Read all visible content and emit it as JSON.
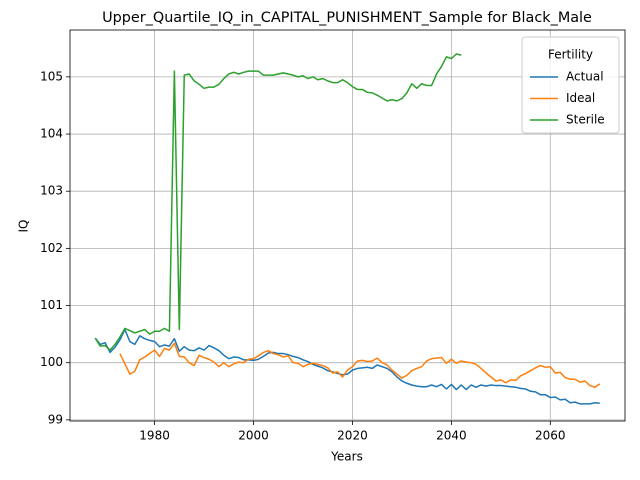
{
  "chart_data": {
    "type": "line",
    "title": "Upper_Quartile_IQ_in_CAPITAL_PUNISHMENT_Sample for Black_Male",
    "xlabel": "Years",
    "ylabel": "IQ",
    "legend_title": "Fertility",
    "legend": "upper right",
    "grid": true,
    "x": [
      1968,
      1969,
      1970,
      1971,
      1972,
      1973,
      1974,
      1975,
      1976,
      1977,
      1978,
      1979,
      1980,
      1981,
      1982,
      1983,
      1984,
      1985,
      1986,
      1987,
      1988,
      1989,
      1990,
      1991,
      1992,
      1993,
      1994,
      1995,
      1996,
      1997,
      1998,
      1999,
      2000,
      2001,
      2002,
      2003,
      2004,
      2005,
      2006,
      2007,
      2008,
      2009,
      2010,
      2011,
      2012,
      2013,
      2014,
      2015,
      2016,
      2017,
      2018,
      2019,
      2020,
      2021,
      2022,
      2023,
      2024,
      2025,
      2026,
      2027,
      2028,
      2029,
      2030,
      2031,
      2032,
      2033,
      2034,
      2035,
      2036,
      2037,
      2038,
      2039,
      2040,
      2041,
      2042,
      2043,
      2044,
      2045,
      2046,
      2047,
      2048,
      2049,
      2050,
      2051,
      2052,
      2053,
      2054,
      2055,
      2056,
      2057,
      2058,
      2059,
      2060,
      2061,
      2062,
      2063,
      2064,
      2065,
      2066,
      2067,
      2068,
      2069,
      2070
    ],
    "series": [
      {
        "name": "Actual",
        "color": "#1f77b4",
        "values": [
          100.43,
          100.32,
          100.35,
          100.18,
          100.27,
          100.4,
          100.58,
          100.37,
          100.32,
          100.47,
          100.42,
          100.39,
          100.37,
          100.28,
          100.31,
          100.29,
          100.42,
          100.2,
          100.28,
          100.22,
          100.21,
          100.26,
          100.22,
          100.3,
          100.26,
          100.21,
          100.13,
          100.07,
          100.1,
          100.09,
          100.05,
          100.05,
          100.04,
          100.06,
          100.11,
          100.17,
          100.18,
          100.16,
          100.16,
          100.14,
          100.11,
          100.09,
          100.05,
          100.02,
          99.97,
          99.94,
          99.91,
          99.86,
          99.84,
          99.81,
          99.79,
          99.8,
          99.87,
          99.9,
          99.91,
          99.92,
          99.9,
          99.96,
          99.93,
          99.9,
          99.84,
          99.75,
          99.68,
          99.64,
          99.61,
          99.59,
          99.58,
          99.58,
          99.61,
          99.58,
          99.62,
          99.54,
          99.62,
          99.53,
          99.61,
          99.53,
          99.61,
          99.57,
          99.61,
          99.59,
          99.61,
          99.6,
          99.6,
          99.59,
          99.58,
          99.57,
          99.55,
          99.54,
          99.5,
          99.49,
          99.44,
          99.44,
          99.39,
          99.4,
          99.35,
          99.36,
          99.3,
          99.31,
          99.28,
          99.28,
          99.28,
          99.3,
          99.29
        ]
      },
      {
        "name": "Ideal",
        "color": "#ff7f0e",
        "values": [
          null,
          null,
          null,
          null,
          null,
          100.16,
          99.98,
          99.8,
          99.85,
          100.05,
          100.1,
          100.16,
          100.22,
          100.11,
          100.25,
          100.22,
          100.34,
          100.11,
          100.1,
          100.0,
          99.95,
          100.13,
          100.09,
          100.06,
          100.01,
          99.93,
          100.0,
          99.93,
          99.98,
          100.01,
          100.0,
          100.06,
          100.07,
          100.12,
          100.18,
          100.21,
          100.16,
          100.14,
          100.1,
          100.12,
          100.0,
          99.99,
          99.93,
          99.97,
          99.99,
          99.97,
          99.95,
          99.91,
          99.82,
          99.84,
          99.75,
          99.87,
          99.93,
          100.03,
          100.04,
          100.02,
          100.03,
          100.08,
          100.0,
          99.96,
          99.87,
          99.8,
          99.73,
          99.78,
          99.86,
          99.9,
          99.93,
          100.03,
          100.07,
          100.08,
          100.09,
          99.99,
          100.06,
          99.99,
          100.03,
          100.01,
          100.0,
          99.97,
          99.9,
          99.82,
          99.75,
          99.68,
          99.7,
          99.65,
          99.7,
          99.69,
          99.77,
          99.81,
          99.86,
          99.91,
          99.95,
          99.92,
          99.93,
          99.82,
          99.83,
          99.74,
          99.71,
          99.71,
          99.66,
          99.68,
          99.6,
          99.57,
          99.63
        ]
      },
      {
        "name": "Sterile",
        "color": "#2ca02c",
        "values": [
          100.43,
          100.29,
          100.3,
          100.22,
          100.32,
          100.45,
          100.6,
          100.56,
          100.52,
          100.55,
          100.58,
          100.5,
          100.55,
          100.55,
          100.6,
          100.55,
          105.1,
          100.58,
          105.03,
          105.05,
          104.93,
          104.87,
          104.8,
          104.82,
          104.82,
          104.87,
          104.97,
          105.05,
          105.08,
          105.05,
          105.08,
          105.1,
          105.1,
          105.1,
          105.03,
          105.03,
          105.03,
          105.05,
          105.07,
          105.05,
          105.03,
          105.0,
          105.02,
          104.97,
          105.0,
          104.95,
          104.97,
          104.93,
          104.9,
          104.9,
          104.95,
          104.9,
          104.83,
          104.78,
          104.78,
          104.73,
          104.72,
          104.68,
          104.63,
          104.58,
          104.6,
          104.58,
          104.62,
          104.72,
          104.88,
          104.8,
          104.88,
          104.85,
          104.85,
          105.05,
          105.18,
          105.35,
          105.32,
          105.4,
          105.38,
          null,
          null,
          null,
          null,
          null,
          null,
          null,
          null,
          null,
          null,
          null,
          null,
          null,
          null,
          null,
          null,
          null,
          null,
          null,
          null,
          null,
          null,
          null,
          null,
          null,
          null,
          null,
          null
        ]
      }
    ],
    "xlim": [
      1962.9,
      2075.1
    ],
    "xticks": [
      1980,
      2000,
      2020,
      2040,
      2060
    ],
    "ylim": [
      98.98,
      105.82
    ],
    "yticks": [
      99,
      100,
      101,
      102,
      103,
      104,
      105
    ]
  }
}
